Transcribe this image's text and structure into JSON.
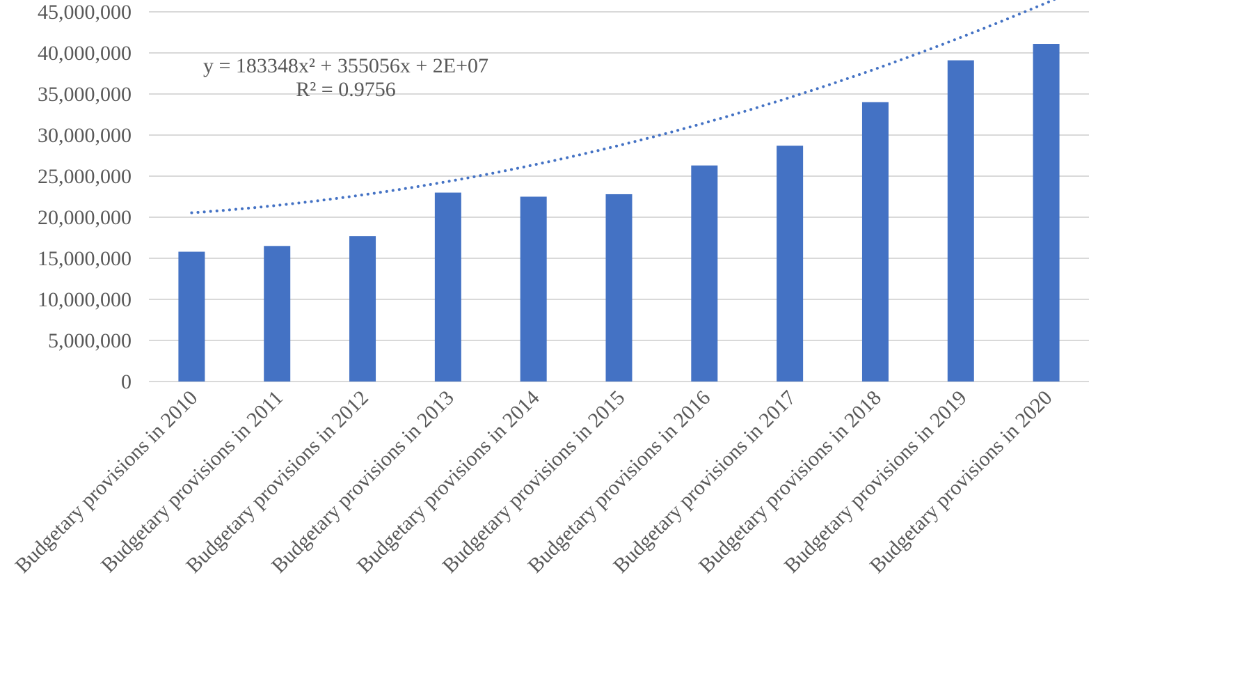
{
  "chart_data": {
    "type": "bar",
    "title": "",
    "xlabel": "",
    "ylabel": "",
    "categories": [
      "Budgetary provisions in 2010",
      "Budgetary provisions in 2011",
      "Budgetary provisions in 2012",
      "Budgetary provisions in 2013",
      "Budgetary provisions in 2014",
      "Budgetary provisions in 2015",
      "Budgetary provisions in 2016",
      "Budgetary provisions in 2017",
      "Budgetary provisions in 2018",
      "Budgetary provisions in 2019",
      "Budgetary provisions in 2020"
    ],
    "values": [
      15800000,
      16500000,
      17700000,
      23000000,
      22500000,
      22800000,
      26300000,
      28700000,
      34000000,
      39100000,
      41100000
    ],
    "ylim": [
      0,
      45000000
    ],
    "y_ticks": [
      0,
      5000000,
      10000000,
      15000000,
      20000000,
      25000000,
      30000000,
      35000000,
      40000000,
      45000000
    ],
    "y_tick_labels": [
      "0",
      "5,000,000",
      "10,000,000",
      "15,000,000",
      "20,000,000",
      "25,000,000",
      "30,000,000",
      "35,000,000",
      "40,000,000",
      "45,000,000"
    ],
    "grid": true,
    "legend": "none",
    "bar_color": "#4472C4",
    "trendline": {
      "type": "polynomial",
      "order": 2,
      "coefficients": [
        183348,
        355056,
        20000000
      ],
      "style": "dotted",
      "color": "#4472C4",
      "equation": "y = 183348x² + 355056x + 2E+07",
      "r_squared": "R² = 0.9756"
    }
  }
}
